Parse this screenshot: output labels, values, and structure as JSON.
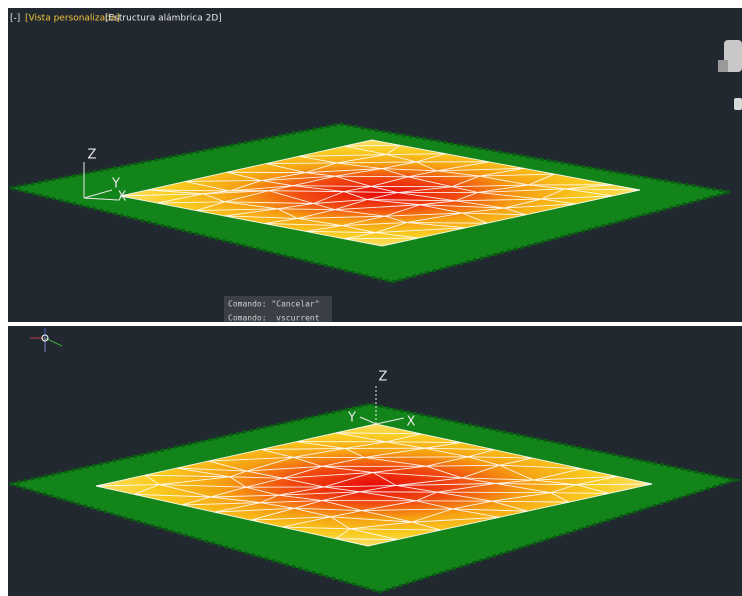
{
  "top_viewport": {
    "header": {
      "minus": "[-]",
      "view": "[Vista personalizada]",
      "style": "[Estructura alámbrica 2D]"
    },
    "axes": {
      "z": "Z",
      "y": "Y",
      "x": "X"
    },
    "command_line": [
      "Comando: \"Cancelar\"",
      "Comando:  _vscurrent"
    ]
  },
  "bottom_viewport": {
    "axes": {
      "z": "Z",
      "y": "Y",
      "x": "X"
    }
  }
}
